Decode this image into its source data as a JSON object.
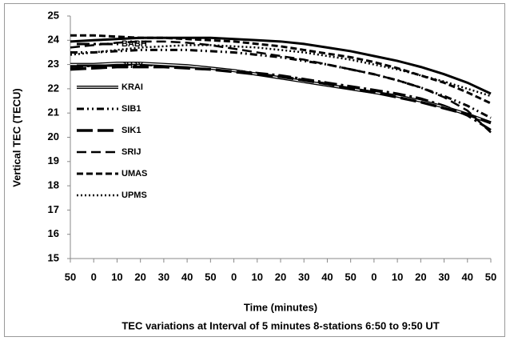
{
  "chart_data": {
    "type": "line",
    "x_label": "Time (minutes)",
    "y_label": "Vertical TEC (TECU)",
    "caption": "TEC variations at Interval of 5 minutes 8-stations 6:50 to 9:50 UT",
    "categories": [
      "50",
      "0",
      "10",
      "20",
      "30",
      "40",
      "50",
      "0",
      "10",
      "20",
      "30",
      "40",
      "50",
      "0",
      "10",
      "20",
      "30",
      "40",
      "50"
    ],
    "ylim": [
      15,
      25
    ],
    "yticks": [
      15,
      16,
      17,
      18,
      19,
      20,
      21,
      22,
      23,
      24,
      25
    ],
    "grid": false,
    "legend": "left",
    "series": [
      {
        "name": "BABH",
        "color": "#000000",
        "dash": "16 5 3 5",
        "width": 3,
        "values": [
          22.9,
          22.95,
          23.0,
          23.0,
          22.95,
          22.9,
          22.85,
          22.75,
          22.65,
          22.55,
          22.4,
          22.25,
          22.1,
          21.95,
          21.8,
          21.6,
          21.3,
          20.9,
          20.3
        ]
      },
      {
        "name": "JHJY",
        "color": "#000000",
        "width": 3,
        "values": [
          23.95,
          24.0,
          24.05,
          24.1,
          24.1,
          24.1,
          24.1,
          24.05,
          24.0,
          23.95,
          23.85,
          23.7,
          23.55,
          23.35,
          23.15,
          22.9,
          22.6,
          22.25,
          21.8
        ]
      },
      {
        "name": "KRAI",
        "color": "#000000",
        "width": 4,
        "double": true,
        "values": [
          23.0,
          23.0,
          23.05,
          23.05,
          23.0,
          22.95,
          22.85,
          22.75,
          22.6,
          22.45,
          22.3,
          22.15,
          22.0,
          21.85,
          21.7,
          21.5,
          21.25,
          20.95,
          20.6
        ]
      },
      {
        "name": "SIB1",
        "color": "#000000",
        "dash": "9 4 2 4 2 4",
        "width": 3,
        "values": [
          23.5,
          23.5,
          23.55,
          23.6,
          23.6,
          23.6,
          23.55,
          23.5,
          23.4,
          23.3,
          23.15,
          23.0,
          22.8,
          22.6,
          22.35,
          22.05,
          21.7,
          21.3,
          20.8
        ]
      },
      {
        "name": "SIK1",
        "color": "#000000",
        "dash": "20 6",
        "width": 3.5,
        "values": [
          22.8,
          22.85,
          22.9,
          22.9,
          22.9,
          22.85,
          22.8,
          22.7,
          22.6,
          22.5,
          22.35,
          22.2,
          22.0,
          21.85,
          21.65,
          21.45,
          21.2,
          20.95,
          20.6
        ]
      },
      {
        "name": "SRIJ",
        "color": "#000000",
        "dash": "12 6",
        "width": 2.5,
        "values": [
          23.7,
          23.8,
          23.9,
          23.95,
          23.95,
          23.9,
          23.8,
          23.65,
          23.5,
          23.35,
          23.2,
          23.0,
          22.8,
          22.6,
          22.35,
          22.05,
          21.65,
          21.1,
          20.2
        ]
      },
      {
        "name": "UMAS",
        "color": "#000000",
        "dash": "8 4",
        "width": 3,
        "values": [
          24.2,
          24.2,
          24.15,
          24.1,
          24.1,
          24.05,
          24.0,
          23.95,
          23.85,
          23.75,
          23.6,
          23.45,
          23.3,
          23.1,
          22.85,
          22.55,
          22.25,
          21.85,
          21.4
        ]
      },
      {
        "name": "UPMS",
        "color": "#000000",
        "dash": "2 3",
        "width": 2.5,
        "values": [
          23.4,
          23.5,
          23.6,
          23.7,
          23.75,
          23.8,
          23.8,
          23.75,
          23.7,
          23.6,
          23.5,
          23.35,
          23.2,
          23.0,
          22.8,
          22.55,
          22.3,
          22.0,
          21.7
        ]
      }
    ]
  }
}
